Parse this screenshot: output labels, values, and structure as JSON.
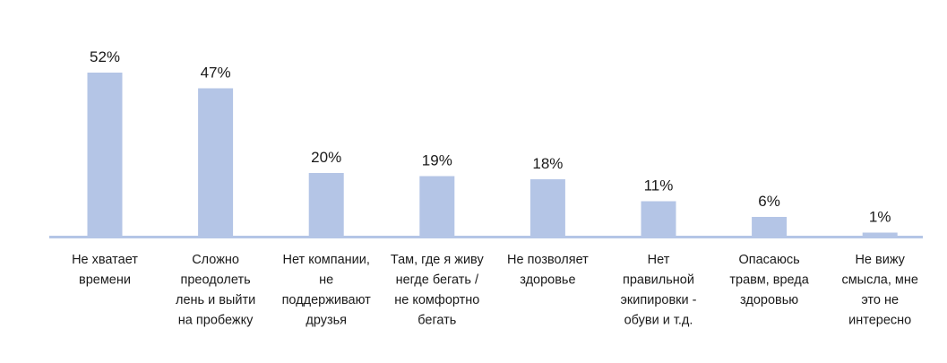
{
  "chart_data": {
    "type": "bar",
    "title": "",
    "xlabel": "",
    "ylabel": "",
    "ylim": [
      0,
      52
    ],
    "grid": false,
    "legend": "none",
    "bar_color": "#b4c5e6",
    "baseline_color": "#b4c5e6",
    "categories": [
      [
        "Не хватает",
        "времени"
      ],
      [
        "Сложно",
        "преодолеть",
        "лень и выйти",
        "на пробежку"
      ],
      [
        "Нет компании,",
        "не",
        "поддерживают",
        "друзья"
      ],
      [
        "Там, где я живу",
        "негде бегать /",
        "не комфортно",
        "бегать"
      ],
      [
        "Не позволяет",
        "здоровье"
      ],
      [
        "Нет",
        "правильной",
        "экипировки -",
        "обуви и т.д."
      ],
      [
        "Опасаюсь",
        "травм, вреда",
        "здоровью"
      ],
      [
        "Не вижу",
        "смысла, мне",
        "это не",
        "интересно"
      ]
    ],
    "values": [
      52,
      47,
      20,
      19,
      18,
      11,
      6,
      1
    ],
    "value_labels": [
      "52%",
      "47%",
      "20%",
      "19%",
      "18%",
      "11%",
      "6%",
      "1%"
    ]
  }
}
